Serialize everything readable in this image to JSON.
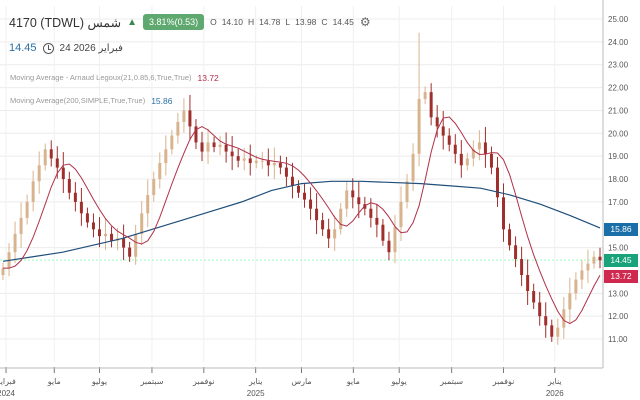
{
  "header": {
    "title": "4170 (TDWL) شمس",
    "direction_icon": "triangle-up-icon",
    "change_badge": "3.81%(0.53)",
    "open_label": "O",
    "open": "14.10",
    "high_label": "H",
    "high": "14.78",
    "low_label": "L",
    "low": "13.98",
    "close_label": "C",
    "close": "14.45",
    "settings_icon": "gear-icon",
    "last_price": "14.45",
    "date": "24 فبراير 2026",
    "clock_icon": "clock-icon"
  },
  "indicators": [
    {
      "label": "Moving Average - Arnaud Legoux(21,0.85,6,True,True)",
      "value": "13.72",
      "color": "#b0304a"
    },
    {
      "label": "Moving Average(200,SIMPLE,True,True)",
      "value": "15.86",
      "color": "#1f4f7a"
    }
  ],
  "price_tags": [
    {
      "value": "15.86",
      "color": "#1b6fa8"
    },
    {
      "value": "14.45",
      "color": "#1aa37a"
    },
    {
      "value": "13.72",
      "color": "#d0294f"
    }
  ],
  "chart_data": {
    "type": "candlestick",
    "ylim": [
      10.3,
      25.8
    ],
    "y_ticks": [
      "25.00",
      "24.00",
      "23.00",
      "22.00",
      "21.00",
      "20.00",
      "19.00",
      "18.00",
      "17.00",
      "15.00",
      "13.00",
      "12.00",
      "11.00"
    ],
    "x_ticks": [
      {
        "label": "فبراير",
        "year": "2024",
        "pos": 0.01
      },
      {
        "label": "مايو",
        "year": "",
        "pos": 0.09
      },
      {
        "label": "يوليو",
        "year": "",
        "pos": 0.165
      },
      {
        "label": "سبتمبر",
        "year": "",
        "pos": 0.252
      },
      {
        "label": "نوفمبر",
        "year": "",
        "pos": 0.338
      },
      {
        "label": "يناير",
        "year": "2025",
        "pos": 0.424
      },
      {
        "label": "مارس",
        "year": "",
        "pos": 0.5
      },
      {
        "label": "مايو",
        "year": "",
        "pos": 0.586
      },
      {
        "label": "يوليو",
        "year": "",
        "pos": 0.662
      },
      {
        "label": "سبتمبر",
        "year": "",
        "pos": 0.749
      },
      {
        "label": "نوفمبر",
        "year": "",
        "pos": 0.835
      },
      {
        "label": "يناير",
        "year": "2026",
        "pos": 0.92
      }
    ],
    "closes": [
      14.1,
      14.8,
      15.6,
      16.3,
      17.0,
      17.9,
      18.6,
      19.3,
      18.9,
      18.5,
      18.0,
      17.4,
      17.0,
      16.5,
      16.1,
      15.8,
      15.5,
      15.6,
      15.3,
      15.4,
      15.0,
      14.6,
      15.6,
      16.5,
      17.3,
      18.0,
      18.7,
      19.3,
      19.9,
      20.5,
      21.0,
      20.3,
      19.6,
      19.2,
      19.6,
      19.4,
      19.5,
      19.2,
      19.0,
      18.8,
      18.9,
      18.7,
      18.8,
      18.8,
      18.6,
      18.7,
      18.5,
      18.1,
      17.7,
      17.4,
      17.1,
      16.7,
      16.2,
      15.8,
      15.4,
      15.8,
      16.7,
      17.5,
      17.2,
      16.9,
      16.7,
      16.3,
      16.0,
      15.3,
      14.8,
      15.9,
      17.0,
      17.9,
      19.1,
      21.5,
      21.8,
      20.7,
      20.3,
      19.9,
      19.5,
      19.1,
      18.6,
      18.9,
      19.3,
      19.6,
      19.1,
      18.5,
      17.2,
      15.8,
      15.1,
      14.5,
      13.8,
      13.1,
      12.6,
      12.0,
      11.6,
      11.1,
      11.5,
      12.3,
      13.0,
      13.6,
      14.0,
      14.3,
      14.6,
      14.45
    ],
    "peak_high": 24.4,
    "ma200": [
      14.4,
      14.6,
      14.8,
      15.1,
      15.4,
      15.8,
      16.2,
      16.6,
      17.0,
      17.5,
      17.8,
      17.9,
      17.9,
      17.85,
      17.8,
      17.7,
      17.6,
      17.3,
      16.9,
      16.4,
      15.86
    ],
    "colors": {
      "up": "#d8b48e",
      "down": "#9e2f2c",
      "ma21": "#b0304a",
      "ma200": "#1f4f7a",
      "last_line": "#1aa37a"
    }
  }
}
